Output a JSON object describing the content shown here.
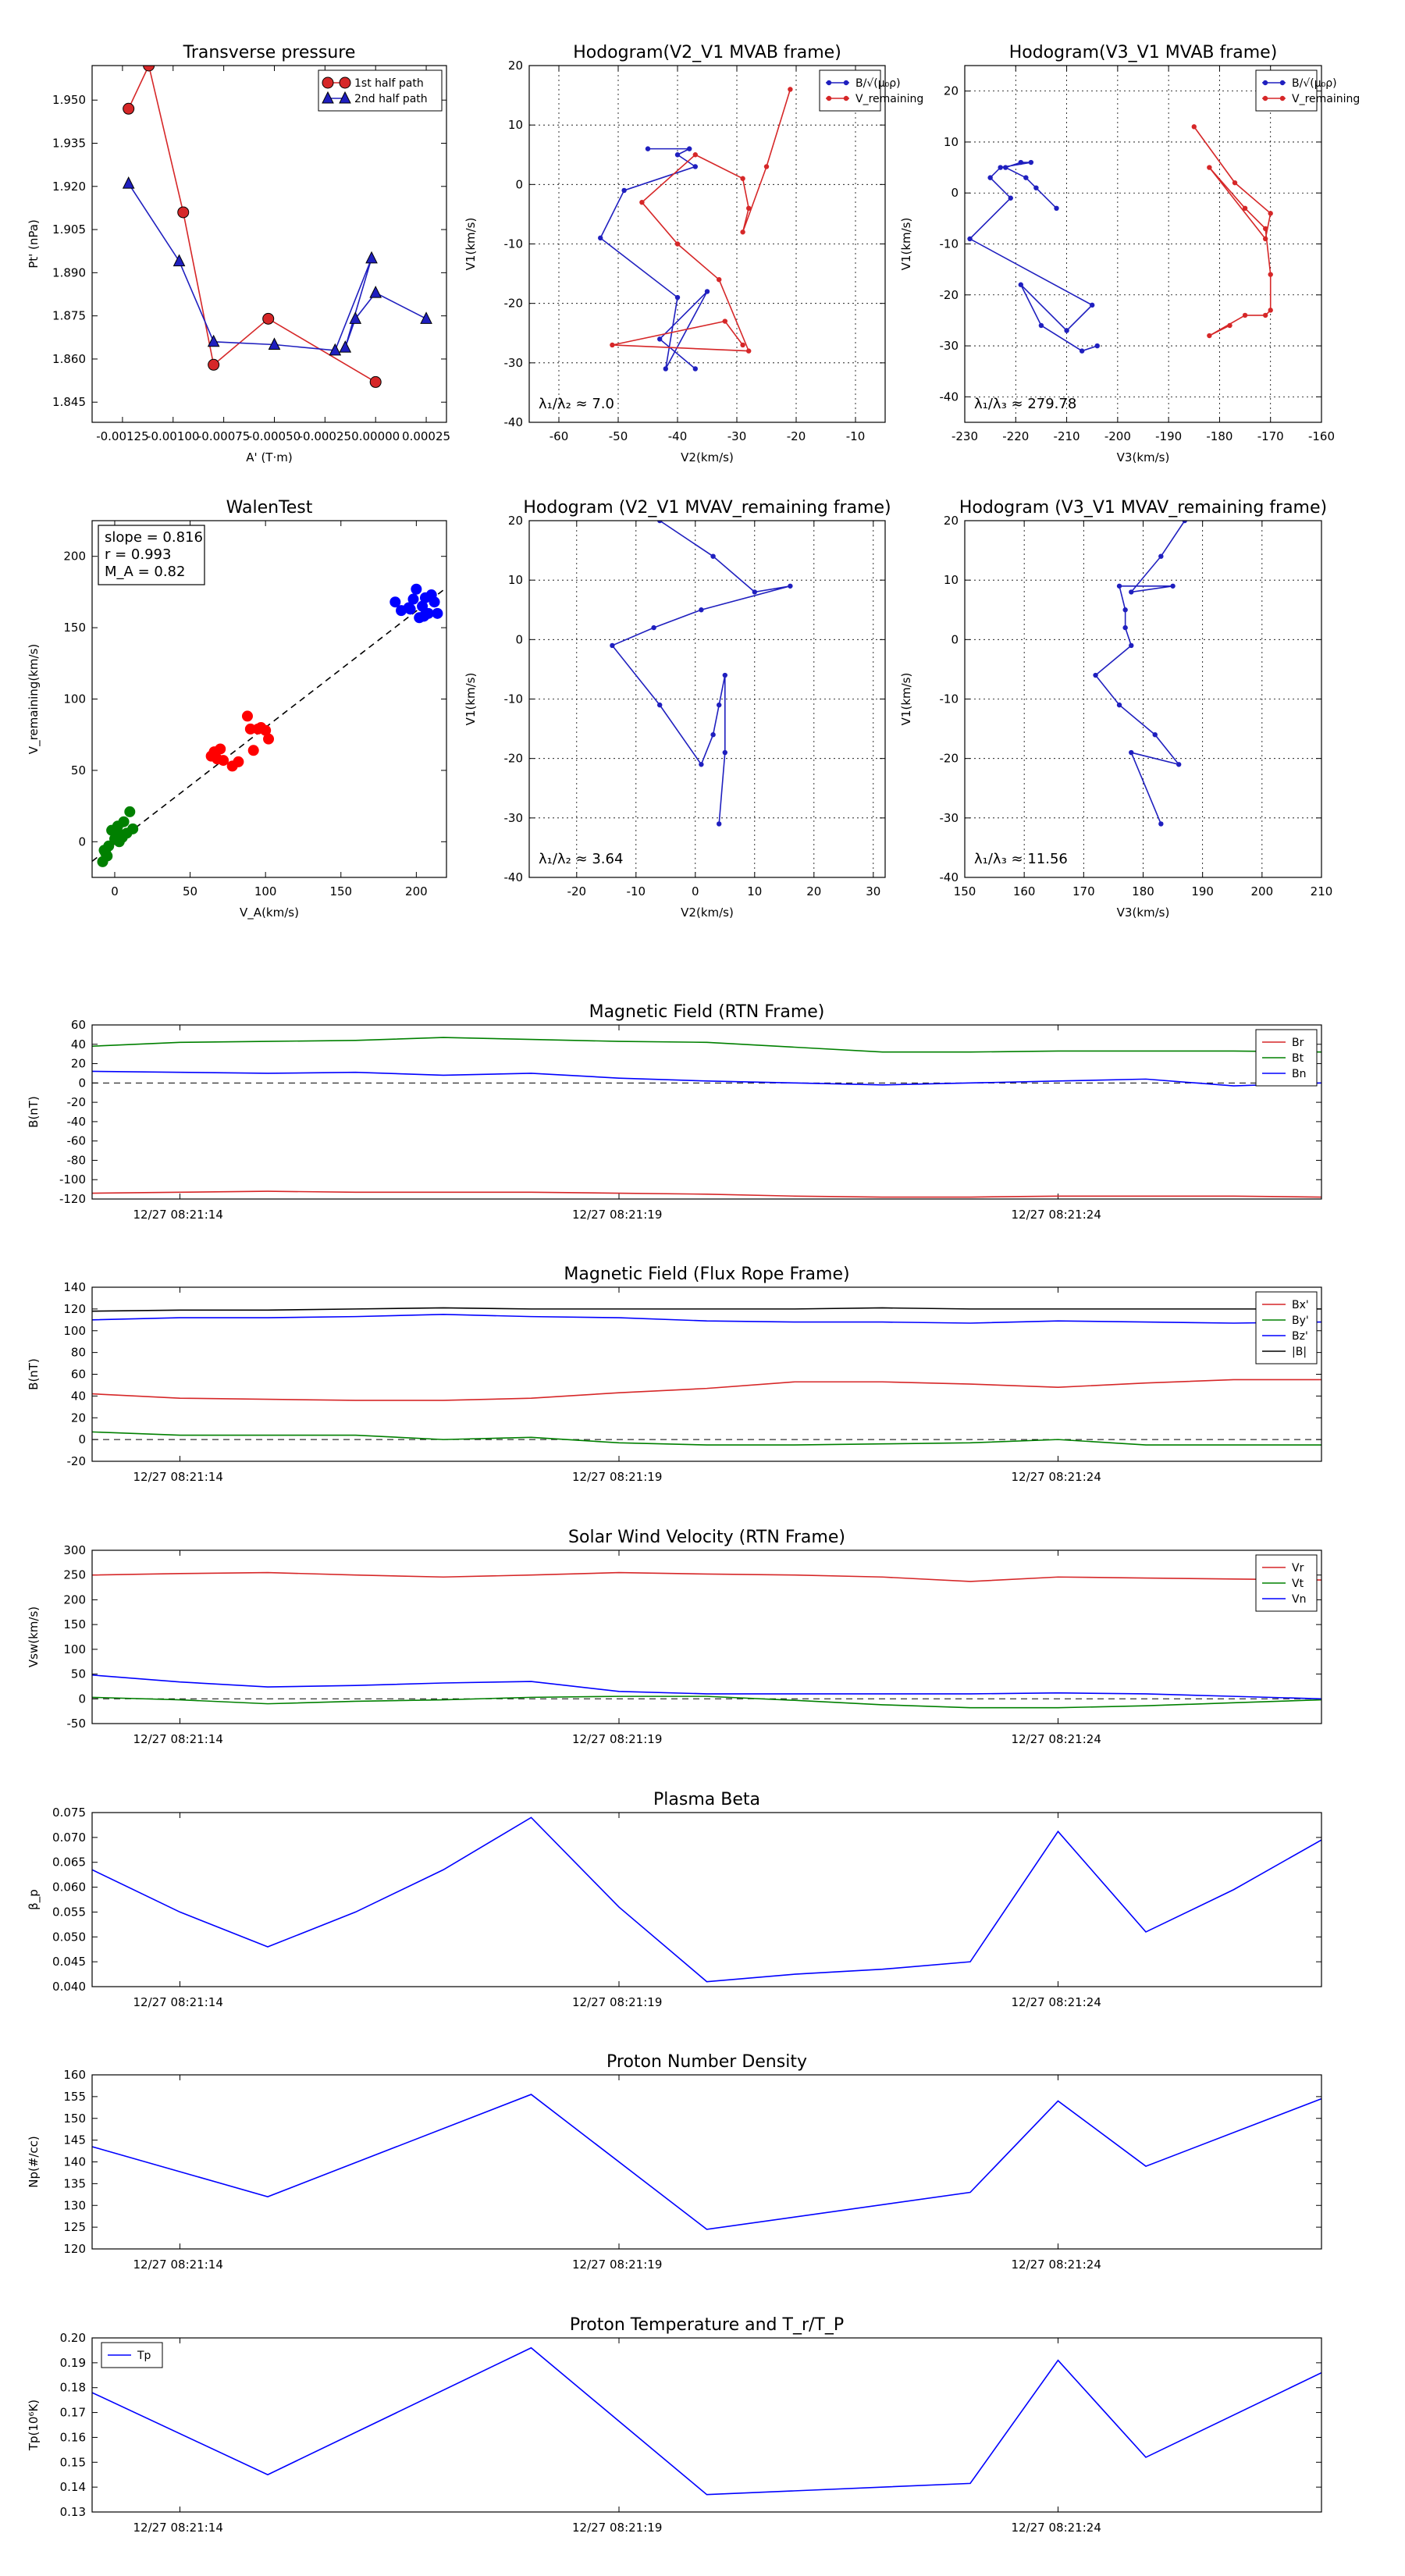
{
  "chart_data": [
    {
      "id": "transverse_pressure",
      "type": "scatter",
      "title": "Transverse pressure",
      "xlabel": "A' (T·m)",
      "ylabel": "Pt' (nPa)",
      "xlim": [
        -0.0014,
        0.00035
      ],
      "ylim": [
        1.838,
        1.962
      ],
      "xticks": [
        -0.00125,
        -0.001,
        -0.00075,
        -0.0005,
        -0.00025,
        0.0,
        0.00025
      ],
      "xticklabels": [
        "-0.00125",
        "-0.00100",
        "-0.00075",
        "-0.00050",
        "-0.00025",
        "0.00000",
        "0.00025"
      ],
      "yticks": [
        1.845,
        1.86,
        1.875,
        1.89,
        1.905,
        1.92,
        1.935,
        1.95
      ],
      "yticklabels": [
        "1.845",
        "1.860",
        "1.875",
        "1.890",
        "1.905",
        "1.920",
        "1.935",
        "1.950"
      ],
      "grid": false,
      "legend": "top-right",
      "series": [
        {
          "name": "1st half path",
          "color": "#d62728",
          "marker": "circle",
          "x": [
            -0.00122,
            -0.00112,
            -0.00095,
            -0.0008,
            -0.00053,
            0.0
          ],
          "y": [
            1.947,
            1.962,
            1.911,
            1.858,
            1.874,
            1.852
          ]
        },
        {
          "name": "2nd half path",
          "color": "#1f1fbf",
          "marker": "triangle",
          "x": [
            0.00025,
            0.0,
            -0.0001,
            -0.00015,
            -2e-05,
            -0.0002,
            -0.0005,
            -0.0008,
            -0.00097,
            -0.00122
          ],
          "y": [
            1.874,
            1.883,
            1.874,
            1.864,
            1.895,
            1.863,
            1.865,
            1.866,
            1.894,
            1.921
          ]
        }
      ]
    },
    {
      "id": "hodogram_v2_v1_mvab",
      "type": "line",
      "title": "Hodogram(V2_V1 MVAB frame)",
      "xlabel": "V2(km/s)",
      "ylabel": "V1(km/s)",
      "xlim": [
        -65,
        -5
      ],
      "ylim": [
        -40,
        20
      ],
      "xticks": [
        -60,
        -50,
        -40,
        -30,
        -20,
        -10
      ],
      "yticks": [
        -40,
        -30,
        -20,
        -10,
        0,
        10,
        20
      ],
      "grid": true,
      "legend": "top-right",
      "annotation": "λ₁/λ₂ ≈ 7.0",
      "series": [
        {
          "name": "B/√(μ₀ρ)",
          "color": "#1f1fbf",
          "x": [
            -45,
            -38,
            -40,
            -37,
            -49,
            -53,
            -40,
            -42,
            -35,
            -43,
            -37
          ],
          "y": [
            6,
            6,
            5,
            3,
            -1,
            -9,
            -19,
            -31,
            -18,
            -26,
            -31
          ]
        },
        {
          "name": "V_remaining",
          "color": "#d62728",
          "x": [
            -21,
            -25,
            -29,
            -28,
            -29,
            -37,
            -46,
            -40,
            -33,
            -28,
            -51,
            -32,
            -29
          ],
          "y": [
            16,
            3,
            -8,
            -4,
            1,
            5,
            -3,
            -10,
            -16,
            -28,
            -27,
            -23,
            -27
          ]
        }
      ]
    },
    {
      "id": "hodogram_v3_v1_mvab",
      "type": "line",
      "title": "Hodogram(V3_V1 MVAB frame)",
      "xlabel": "V3(km/s)",
      "ylabel": "V1(km/s)",
      "xlim": [
        -230,
        -160
      ],
      "ylim": [
        -45,
        25
      ],
      "xticks": [
        -230,
        -220,
        -210,
        -200,
        -190,
        -180,
        -170,
        -160
      ],
      "yticks": [
        -40,
        -30,
        -20,
        -10,
        0,
        10,
        20
      ],
      "grid": true,
      "legend": "top-right",
      "annotation": "λ₁/λ₃ ≈ 279.78",
      "series": [
        {
          "name": "B/√(μ₀ρ)",
          "color": "#1f1fbf",
          "x": [
            -212,
            -216,
            -218,
            -222,
            -219,
            -217,
            -223,
            -225,
            -221,
            -229,
            -205,
            -210,
            -219,
            -215,
            -207,
            -204
          ],
          "y": [
            -3,
            1,
            3,
            5,
            6,
            6,
            5,
            3,
            -1,
            -9,
            -22,
            -27,
            -18,
            -26,
            -31,
            -30
          ]
        },
        {
          "name": "V_remaining",
          "color": "#d62728",
          "x": [
            -185,
            -177,
            -170,
            -171,
            -182,
            -175,
            -171,
            -170,
            -170,
            -171,
            -175,
            -182,
            -178
          ],
          "y": [
            13,
            2,
            -4,
            -9,
            5,
            -3,
            -7,
            -16,
            -23,
            -24,
            -24,
            -28,
            -26
          ]
        }
      ]
    },
    {
      "id": "walen_test",
      "type": "scatter",
      "title": "WalenTest",
      "xlabel": "V_A(km/s)",
      "ylabel": "V_remaining(km/s)",
      "xlim": [
        -15,
        220
      ],
      "ylim": [
        -25,
        225
      ],
      "xticks": [
        0,
        50,
        100,
        150,
        200
      ],
      "yticks": [
        0,
        50,
        100,
        150,
        200
      ],
      "grid": false,
      "fit_line": {
        "slope": 0.816,
        "intercept": -1.5,
        "style": "dashed"
      },
      "annotations": [
        "slope = 0.816",
        "r = 0.993",
        "M_A = 0.82"
      ],
      "series": [
        {
          "name": "green",
          "color": "#008000",
          "x": [
            -8,
            -6,
            -4,
            -2,
            0,
            2,
            4,
            6,
            8,
            10,
            -5,
            3,
            12,
            -7,
            5
          ],
          "y": [
            -14,
            -8,
            -3,
            8,
            2,
            11,
            5,
            14,
            6,
            21,
            -10,
            0,
            9,
            -6,
            3
          ]
        },
        {
          "name": "red",
          "color": "#ff0000",
          "x": [
            64,
            66,
            68,
            70,
            72,
            78,
            82,
            88,
            90,
            92,
            95,
            97,
            100,
            102
          ],
          "y": [
            60,
            63,
            58,
            65,
            57,
            53,
            56,
            88,
            79,
            64,
            79,
            80,
            78,
            72
          ]
        },
        {
          "name": "blue",
          "color": "#0000ff",
          "x": [
            186,
            190,
            195,
            198,
            200,
            202,
            204,
            206,
            208,
            210,
            212,
            214,
            196,
            205
          ],
          "y": [
            168,
            162,
            164,
            170,
            177,
            157,
            165,
            171,
            160,
            173,
            168,
            160,
            163,
            158
          ]
        }
      ]
    },
    {
      "id": "hodogram_v2_v1_mvav",
      "type": "line",
      "title": "Hodogram (V2_V1 MVAV_remaining frame)",
      "xlabel": "V2(km/s)",
      "ylabel": "V1(km/s)",
      "xlim": [
        -28,
        32
      ],
      "ylim": [
        -40,
        20
      ],
      "xticks": [
        -20,
        -10,
        0,
        10,
        20,
        30
      ],
      "yticks": [
        -40,
        -30,
        -20,
        -10,
        0,
        10,
        20
      ],
      "grid": true,
      "annotation": "λ₁/λ₂ ≈ 3.64",
      "series": [
        {
          "name": "V",
          "color": "#1f1fbf",
          "x": [
            -6,
            3,
            10,
            16,
            1,
            -7,
            -14,
            -6,
            1,
            3,
            4,
            5,
            5,
            4
          ],
          "y": [
            20,
            14,
            8,
            9,
            5,
            2,
            -1,
            -11,
            -21,
            -16,
            -11,
            -6,
            -19,
            -31
          ]
        }
      ]
    },
    {
      "id": "hodogram_v3_v1_mvav",
      "type": "line",
      "title": "Hodogram (V3_V1 MVAV_remaining frame)",
      "xlabel": "V3(km/s)",
      "ylabel": "V1(km/s)",
      "xlim": [
        150,
        210
      ],
      "ylim": [
        -40,
        20
      ],
      "xticks": [
        150,
        160,
        170,
        180,
        190,
        200,
        210
      ],
      "yticks": [
        -40,
        -30,
        -20,
        -10,
        0,
        10,
        20
      ],
      "grid": true,
      "annotation": "λ₁/λ₃ ≈ 11.56",
      "series": [
        {
          "name": "V",
          "color": "#1f1fbf",
          "x": [
            187,
            183,
            178,
            185,
            176,
            177,
            177,
            178,
            172,
            176,
            182,
            186,
            178,
            183
          ],
          "y": [
            20,
            14,
            8,
            9,
            9,
            5,
            2,
            -1,
            -6,
            -11,
            -16,
            -21,
            -19,
            -31
          ]
        }
      ]
    },
    {
      "id": "mag_field_rtn",
      "type": "line",
      "title": "Magnetic Field (RTN Frame)",
      "ylabel": "B(nT)",
      "ylim": [
        -120,
        60
      ],
      "yticks": [
        -120,
        -100,
        -80,
        -60,
        -40,
        -20,
        0,
        20,
        40,
        60
      ],
      "xlim": [
        0,
        14
      ],
      "xticks": [
        1,
        6,
        11
      ],
      "xticklabels": [
        "12/27 08:21:14",
        "12/27 08:21:19",
        "12/27 08:21:24"
      ],
      "zero_line": true,
      "legend": "top-right",
      "x": [
        0,
        1,
        2,
        3,
        4,
        5,
        6,
        7,
        8,
        9,
        10,
        11,
        12,
        13,
        14
      ],
      "series": [
        {
          "name": "Br",
          "color": "#d62728",
          "values": [
            -114,
            -113,
            -112,
            -113,
            -113,
            -113,
            -114,
            -115,
            -117,
            -118,
            -118,
            -117,
            -117,
            -117,
            -118
          ]
        },
        {
          "name": "Bt",
          "color": "#008000",
          "values": [
            38,
            42,
            43,
            44,
            47,
            45,
            43,
            42,
            37,
            32,
            32,
            33,
            33,
            33,
            32
          ]
        },
        {
          "name": "Bn",
          "color": "#0000ff",
          "values": [
            12,
            11,
            10,
            11,
            8,
            10,
            5,
            2,
            0,
            -2,
            0,
            2,
            4,
            -3,
            0
          ]
        }
      ]
    },
    {
      "id": "mag_field_flux_rope",
      "type": "line",
      "title": "Magnetic Field (Flux Rope Frame)",
      "ylabel": "B(nT)",
      "ylim": [
        -20,
        140
      ],
      "yticks": [
        -20,
        0,
        20,
        40,
        60,
        80,
        100,
        120,
        140
      ],
      "xlim": [
        0,
        14
      ],
      "xticks": [
        1,
        6,
        11
      ],
      "xticklabels": [
        "12/27 08:21:14",
        "12/27 08:21:19",
        "12/27 08:21:24"
      ],
      "zero_line": true,
      "legend": "top-right",
      "x": [
        0,
        1,
        2,
        3,
        4,
        5,
        6,
        7,
        8,
        9,
        10,
        11,
        12,
        13,
        14
      ],
      "series": [
        {
          "name": "Bx'",
          "color": "#d62728",
          "values": [
            42,
            38,
            37,
            36,
            36,
            38,
            43,
            47,
            53,
            53,
            51,
            48,
            52,
            55,
            55
          ]
        },
        {
          "name": "By'",
          "color": "#008000",
          "values": [
            7,
            4,
            4,
            4,
            0,
            2,
            -3,
            -5,
            -5,
            -4,
            -3,
            0,
            -5,
            -5,
            -5
          ]
        },
        {
          "name": "Bz'",
          "color": "#0000ff",
          "values": [
            110,
            112,
            112,
            113,
            115,
            113,
            112,
            109,
            108,
            108,
            107,
            109,
            108,
            107,
            108
          ]
        },
        {
          "name": "|B|",
          "color": "#000000",
          "values": [
            118,
            119,
            119,
            120,
            121,
            120,
            120,
            120,
            120,
            121,
            120,
            120,
            120,
            120,
            120
          ]
        }
      ]
    },
    {
      "id": "solar_wind_velocity",
      "type": "line",
      "title": "Solar Wind Velocity (RTN Frame)",
      "ylabel": "Vsw(km/s)",
      "ylim": [
        -50,
        300
      ],
      "yticks": [
        -50,
        0,
        50,
        100,
        150,
        200,
        250,
        300
      ],
      "xlim": [
        0,
        14
      ],
      "xticks": [
        1,
        6,
        11
      ],
      "xticklabels": [
        "12/27 08:21:14",
        "12/27 08:21:19",
        "12/27 08:21:24"
      ],
      "zero_line": true,
      "legend": "top-right",
      "x": [
        0,
        1,
        2,
        3,
        4,
        5,
        6,
        7,
        8,
        9,
        10,
        11,
        12,
        13,
        14
      ],
      "series": [
        {
          "name": "Vr",
          "color": "#d62728",
          "values": [
            250,
            253,
            255,
            250,
            246,
            250,
            255,
            252,
            250,
            246,
            237,
            246,
            244,
            242,
            240
          ]
        },
        {
          "name": "Vt",
          "color": "#008000",
          "values": [
            3,
            -2,
            -10,
            -5,
            -2,
            3,
            5,
            5,
            -3,
            -12,
            -18,
            -18,
            -14,
            -8,
            -2
          ]
        },
        {
          "name": "Vn",
          "color": "#0000ff",
          "values": [
            48,
            34,
            24,
            27,
            32,
            35,
            15,
            10,
            10,
            10,
            10,
            12,
            10,
            5,
            0
          ]
        }
      ]
    },
    {
      "id": "plasma_beta",
      "type": "line",
      "title": "Plasma Beta",
      "ylabel": "β_p",
      "ylim": [
        0.04,
        0.075
      ],
      "yticks": [
        0.04,
        0.045,
        0.05,
        0.055,
        0.06,
        0.065,
        0.07,
        0.075
      ],
      "yticklabels": [
        "0.040",
        "0.045",
        "0.050",
        "0.055",
        "0.060",
        "0.065",
        "0.070",
        "0.075"
      ],
      "xlim": [
        0,
        14
      ],
      "xticks": [
        1,
        6,
        11
      ],
      "xticklabels": [
        "12/27 08:21:14",
        "12/27 08:21:19",
        "12/27 08:21:24"
      ],
      "x": [
        0,
        1,
        2,
        3,
        4,
        5,
        6,
        7,
        8,
        9,
        10,
        11,
        12,
        13,
        14
      ],
      "series": [
        {
          "name": "beta",
          "color": "#0000ff",
          "values": [
            0.0635,
            0.055,
            0.048,
            0.055,
            0.0635,
            0.074,
            0.056,
            0.041,
            0.0425,
            0.0435,
            0.045,
            0.0712,
            0.051,
            0.0595,
            0.0695
          ]
        }
      ]
    },
    {
      "id": "proton_density",
      "type": "line",
      "title": "Proton Number Density",
      "ylabel": "Np(#/cc)",
      "ylim": [
        120,
        160
      ],
      "yticks": [
        120,
        125,
        130,
        135,
        140,
        145,
        150,
        155,
        160
      ],
      "xlim": [
        0,
        14
      ],
      "xticks": [
        1,
        6,
        11
      ],
      "xticklabels": [
        "12/27 08:21:14",
        "12/27 08:21:19",
        "12/27 08:21:24"
      ],
      "x": [
        0,
        2,
        5,
        7,
        10,
        11,
        12,
        14
      ],
      "series": [
        {
          "name": "Np",
          "color": "#0000ff",
          "values": [
            143.5,
            132,
            155.5,
            124.5,
            133,
            154,
            139,
            154.5
          ]
        }
      ]
    },
    {
      "id": "proton_temperature",
      "type": "line",
      "title": "Proton Temperature and T_r/T_P",
      "ylabel": "Tp(10⁶K)",
      "ylim": [
        0.13,
        0.2
      ],
      "yticks": [
        0.13,
        0.14,
        0.15,
        0.16,
        0.17,
        0.18,
        0.19,
        0.2
      ],
      "yticklabels": [
        "0.13",
        "0.14",
        "0.15",
        "0.16",
        "0.17",
        "0.18",
        "0.19",
        "0.20"
      ],
      "xlim": [
        0,
        14
      ],
      "xticks": [
        1,
        6,
        11
      ],
      "xticklabels": [
        "12/27 08:21:14",
        "12/27 08:21:19",
        "12/27 08:21:24"
      ],
      "legend": "top-left",
      "x": [
        0,
        2,
        5,
        7,
        10,
        11,
        12,
        14
      ],
      "series": [
        {
          "name": "Tp",
          "color": "#0000ff",
          "values": [
            0.178,
            0.145,
            0.196,
            0.137,
            0.1415,
            0.191,
            0.152,
            0.186
          ]
        }
      ]
    }
  ]
}
